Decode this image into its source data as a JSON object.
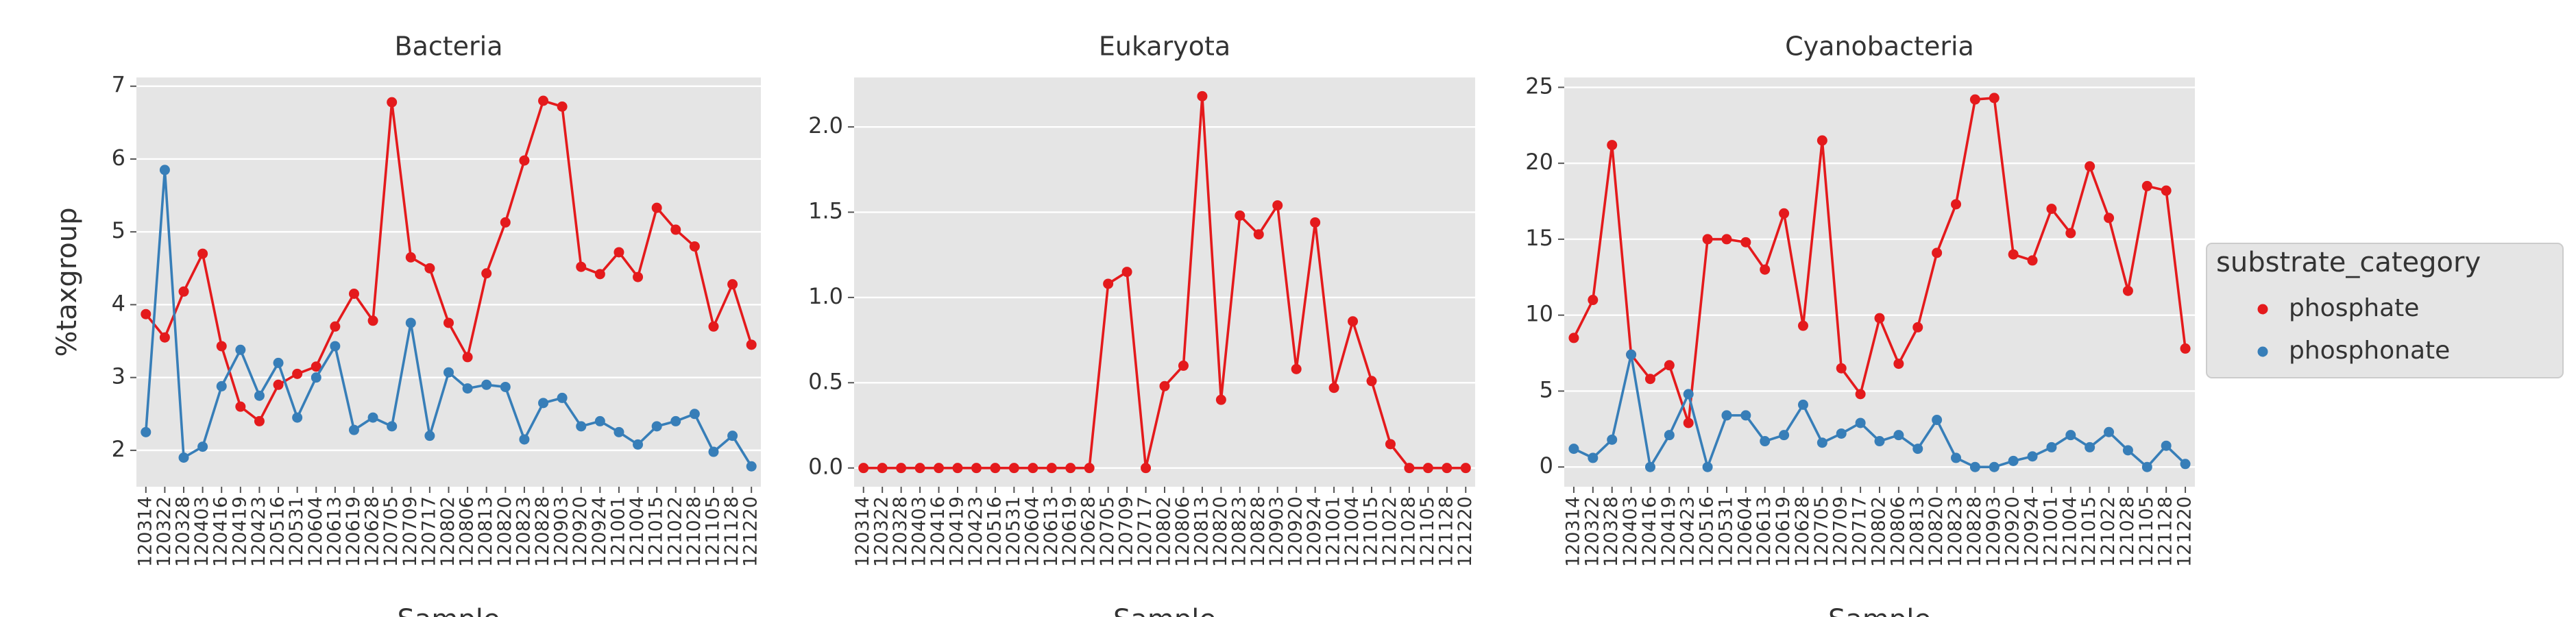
{
  "chart_data": [
    {
      "type": "line",
      "title": "Bacteria",
      "y_label": "%taxgroup",
      "x_label": "Sample",
      "categories": [
        "120314",
        "120322",
        "120328",
        "120403",
        "120416",
        "120419",
        "120423",
        "120516",
        "120531",
        "120604",
        "120613",
        "120619",
        "120628",
        "120705",
        "120709",
        "120717",
        "120802",
        "120806",
        "120813",
        "120820",
        "120823",
        "120828",
        "120903",
        "120920",
        "120924",
        "121001",
        "121004",
        "121015",
        "121022",
        "121028",
        "121105",
        "121128",
        "121220"
      ],
      "series": [
        {
          "name": "phosphate",
          "color": "#e41a1c",
          "values": [
            3.87,
            3.55,
            4.18,
            4.7,
            3.43,
            2.6,
            2.4,
            2.9,
            3.05,
            3.15,
            3.7,
            4.15,
            3.78,
            6.78,
            4.65,
            4.5,
            3.75,
            3.28,
            4.43,
            5.13,
            5.98,
            6.8,
            6.72,
            4.52,
            4.42,
            4.72,
            4.38,
            5.33,
            5.03,
            4.8,
            3.7,
            4.28,
            3.45
          ]
        },
        {
          "name": "phosphonate",
          "color": "#377eb8",
          "values": [
            2.25,
            5.85,
            1.9,
            2.05,
            2.88,
            3.38,
            2.75,
            3.2,
            2.45,
            3.0,
            3.43,
            2.28,
            2.45,
            2.33,
            3.75,
            2.2,
            3.07,
            2.85,
            2.9,
            2.87,
            2.15,
            2.65,
            2.72,
            2.33,
            2.4,
            2.25,
            2.08,
            2.33,
            2.4,
            2.5,
            1.98,
            2.2,
            1.78
          ]
        }
      ],
      "ylim": [
        1.5,
        7.12
      ],
      "yticks": [
        2,
        3,
        4,
        5,
        6,
        7
      ],
      "grid": true
    },
    {
      "type": "line",
      "title": "Eukaryota",
      "x_label": "Sample",
      "categories": [
        "120314",
        "120322",
        "120328",
        "120403",
        "120416",
        "120419",
        "120423",
        "120516",
        "120531",
        "120604",
        "120613",
        "120619",
        "120628",
        "120705",
        "120709",
        "120717",
        "120802",
        "120806",
        "120813",
        "120820",
        "120823",
        "120828",
        "120903",
        "120920",
        "120924",
        "121001",
        "121004",
        "121015",
        "121022",
        "121028",
        "121105",
        "121128",
        "121220"
      ],
      "series": [
        {
          "name": "phosphate",
          "color": "#e41a1c",
          "values": [
            0,
            0,
            0,
            0,
            0,
            0,
            0,
            0,
            0,
            0,
            0,
            0,
            0,
            1.08,
            1.15,
            0,
            0.48,
            0.6,
            2.18,
            0.4,
            1.48,
            1.37,
            1.54,
            0.58,
            1.44,
            0.47,
            0.86,
            0.51,
            0.14,
            0,
            0,
            0,
            0
          ]
        }
      ],
      "ylim": [
        -0.11,
        2.29
      ],
      "yticks": [
        {
          "value": 0,
          "label": "0.0"
        },
        0.5,
        {
          "value": 1,
          "label": "1.0"
        },
        1.5,
        {
          "value": 2,
          "label": "2.0"
        }
      ],
      "grid": true
    },
    {
      "type": "line",
      "title": "Cyanobacteria",
      "x_label": "Sample",
      "categories": [
        "120314",
        "120322",
        "120328",
        "120403",
        "120416",
        "120419",
        "120423",
        "120516",
        "120531",
        "120604",
        "120613",
        "120619",
        "120628",
        "120705",
        "120709",
        "120717",
        "120802",
        "120806",
        "120813",
        "120820",
        "120823",
        "120828",
        "120903",
        "120920",
        "120924",
        "121001",
        "121004",
        "121015",
        "121022",
        "121028",
        "121105",
        "121128",
        "121220"
      ],
      "series": [
        {
          "name": "phosphate",
          "color": "#e41a1c",
          "values": [
            8.5,
            11,
            21.2,
            7.4,
            5.8,
            6.7,
            2.9,
            15,
            15,
            14.8,
            13,
            16.7,
            9.3,
            21.5,
            6.5,
            4.8,
            9.8,
            6.8,
            9.2,
            14.1,
            17.3,
            24.2,
            24.3,
            14,
            13.6,
            17,
            15.4,
            19.8,
            16.4,
            11.6,
            18.5,
            18.2,
            7.8
          ]
        },
        {
          "name": "phosphonate",
          "color": "#377eb8",
          "values": [
            1.2,
            0.6,
            1.8,
            7.4,
            0,
            2.1,
            4.8,
            0,
            3.4,
            3.4,
            1.7,
            2.1,
            4.1,
            1.6,
            2.2,
            2.9,
            1.7,
            2.1,
            1.2,
            3.1,
            0.6,
            0,
            0,
            0.4,
            0.7,
            1.3,
            2.1,
            1.3,
            2.3,
            1.1,
            0,
            1.4,
            0.2
          ]
        }
      ],
      "ylim": [
        -1.3,
        25.65
      ],
      "yticks": [
        0,
        5,
        10,
        15,
        20,
        25
      ],
      "grid": true,
      "legend": {
        "title": "substrate_category",
        "position": "right"
      }
    }
  ]
}
